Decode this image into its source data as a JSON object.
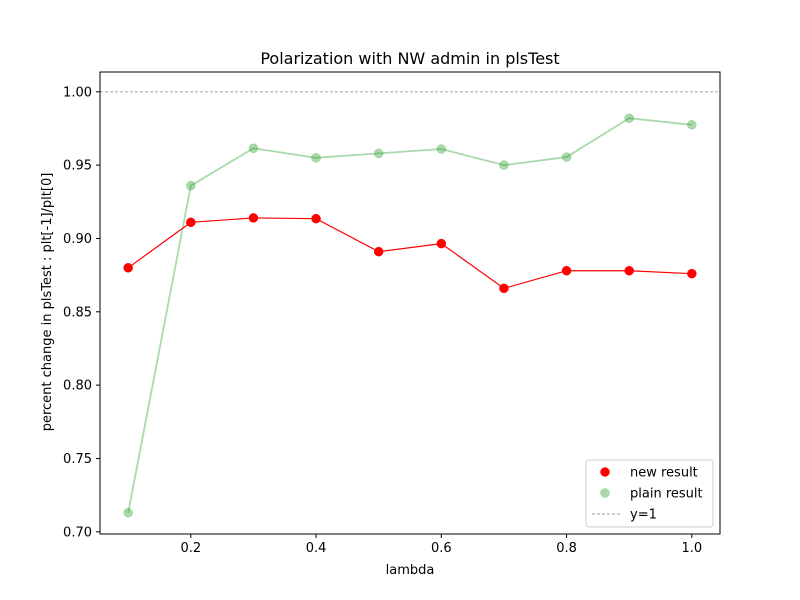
{
  "chart_data": {
    "type": "line",
    "title": "Polarization with NW admin in plsTest",
    "xlabel": "lambda",
    "ylabel": "percent change in plsTest : plt[-1]/plt[0]",
    "xlim": [
      0.055,
      1.045
    ],
    "ylim": [
      0.6985,
      1.0135
    ],
    "xticks": [
      0.2,
      0.4,
      0.6,
      0.8,
      1.0
    ],
    "xtick_labels": [
      "0.2",
      "0.4",
      "0.6",
      "0.8",
      "1.0"
    ],
    "yticks": [
      0.7,
      0.75,
      0.8,
      0.85,
      0.9,
      0.95,
      1.0
    ],
    "ytick_labels": [
      "0.70",
      "0.75",
      "0.80",
      "0.85",
      "0.90",
      "0.95",
      "1.00"
    ],
    "grid": false,
    "legend_position": "lower-right",
    "x": [
      0.1,
      0.2,
      0.3,
      0.4,
      0.5,
      0.6,
      0.7,
      0.8,
      0.9,
      1.0
    ],
    "series": [
      {
        "name": "new result",
        "color": "#ff0000",
        "alpha": 1.0,
        "values": [
          0.88,
          0.911,
          0.914,
          0.9135,
          0.891,
          0.8965,
          0.866,
          0.878,
          0.878,
          0.876
        ]
      },
      {
        "name": "plain result",
        "color": "#2ca02c",
        "alpha": 0.4,
        "values": [
          0.713,
          0.936,
          0.9615,
          0.955,
          0.958,
          0.961,
          0.95,
          0.9555,
          0.982,
          0.9775
        ]
      }
    ],
    "reference_line": {
      "name": "y=1",
      "y": 1.0,
      "color": "#999999",
      "style": "dashed"
    }
  }
}
